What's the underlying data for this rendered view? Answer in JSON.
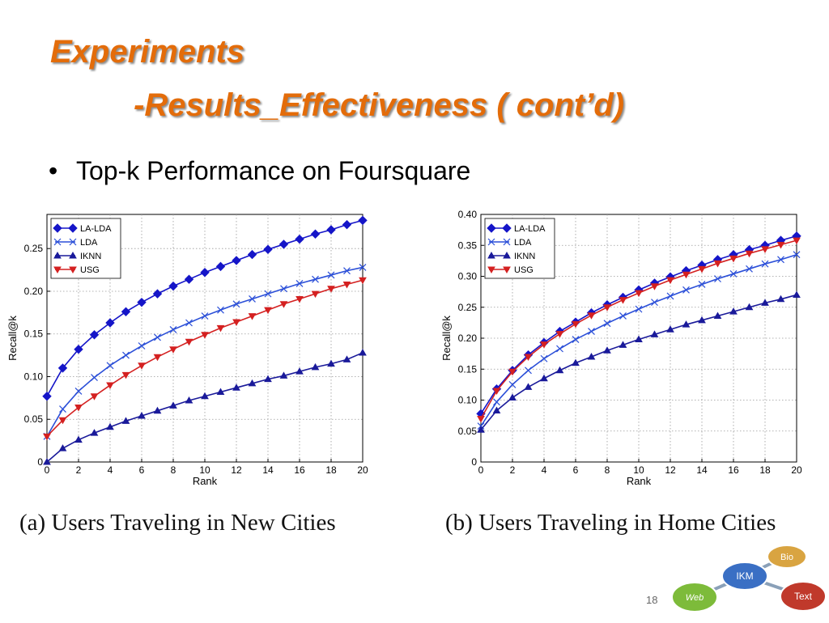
{
  "slide": {
    "title_line1": "Experiments",
    "title_line2": "-Results_Effectiveness ( cont’d)",
    "bullet": "Top-k Performance on Foursquare",
    "caption_a": "(a) Users Traveling in New Cities",
    "caption_b": "(b) Users Traveling in Home Cities",
    "page_number": "18",
    "logo": {
      "nodes": [
        "IKM",
        "Bio",
        "Web",
        "Text"
      ],
      "colors": {
        "IKM": "#3A6FC4",
        "Bio": "#D9A441",
        "Web": "#7DBB3A",
        "Text": "#C0392B"
      }
    },
    "colors": {
      "title": "#E36C0A"
    }
  },
  "chart_data": [
    {
      "type": "line",
      "xlabel": "Rank",
      "ylabel": "Recall@k",
      "xlim": [
        0,
        20
      ],
      "ylim": [
        0,
        0.29
      ],
      "xticks": [
        "0",
        "2",
        "4",
        "6",
        "8",
        "10",
        "12",
        "14",
        "16",
        "18",
        "20"
      ],
      "yticks": [
        "0",
        "0.05",
        "0.10",
        "0.15",
        "0.20",
        "0.25"
      ],
      "grid": true,
      "legend_position": "top-left",
      "x": [
        0,
        1,
        2,
        3,
        4,
        5,
        6,
        7,
        8,
        9,
        10,
        11,
        12,
        13,
        14,
        15,
        16,
        17,
        18,
        19,
        20
      ],
      "series": [
        {
          "name": "LA-LDA",
          "color": "#1515C8",
          "marker": "diamond",
          "values": [
            0.077,
            0.11,
            0.132,
            0.149,
            0.163,
            0.176,
            0.187,
            0.197,
            0.206,
            0.214,
            0.222,
            0.229,
            0.236,
            0.243,
            0.249,
            0.255,
            0.261,
            0.267,
            0.272,
            0.278,
            0.283
          ]
        },
        {
          "name": "LDA",
          "color": "#2B4FD8",
          "marker": "x",
          "values": [
            0.03,
            0.062,
            0.083,
            0.099,
            0.113,
            0.125,
            0.136,
            0.146,
            0.155,
            0.163,
            0.171,
            0.178,
            0.185,
            0.191,
            0.197,
            0.203,
            0.209,
            0.214,
            0.219,
            0.224,
            0.228
          ]
        },
        {
          "name": "IKNN",
          "color": "#1A1A9A",
          "marker": "triangle-up",
          "values": [
            0.0,
            0.016,
            0.026,
            0.034,
            0.041,
            0.048,
            0.054,
            0.06,
            0.066,
            0.072,
            0.077,
            0.082,
            0.087,
            0.092,
            0.097,
            0.101,
            0.106,
            0.111,
            0.115,
            0.12,
            0.128
          ]
        },
        {
          "name": "USG",
          "color": "#D42020",
          "marker": "triangle-down",
          "values": [
            0.03,
            0.049,
            0.064,
            0.077,
            0.09,
            0.102,
            0.113,
            0.123,
            0.132,
            0.141,
            0.149,
            0.157,
            0.164,
            0.171,
            0.178,
            0.185,
            0.191,
            0.197,
            0.203,
            0.208,
            0.213
          ]
        }
      ]
    },
    {
      "type": "line",
      "xlabel": "Rank",
      "ylabel": "Recall@k",
      "xlim": [
        0,
        20
      ],
      "ylim": [
        0,
        0.4
      ],
      "xticks": [
        "0",
        "2",
        "4",
        "6",
        "8",
        "10",
        "12",
        "14",
        "16",
        "18",
        "20"
      ],
      "yticks": [
        "0",
        "0.05",
        "0.10",
        "0.15",
        "0.20",
        "0.25",
        "0.30",
        "0.35",
        "0.40"
      ],
      "grid": true,
      "legend_position": "top-left",
      "x": [
        0,
        1,
        2,
        3,
        4,
        5,
        6,
        7,
        8,
        9,
        10,
        11,
        12,
        13,
        14,
        15,
        16,
        17,
        18,
        19,
        20
      ],
      "series": [
        {
          "name": "LA-LDA",
          "color": "#1515C8",
          "marker": "diamond",
          "values": [
            0.078,
            0.118,
            0.148,
            0.173,
            0.193,
            0.211,
            0.226,
            0.241,
            0.254,
            0.266,
            0.278,
            0.289,
            0.299,
            0.309,
            0.318,
            0.327,
            0.335,
            0.343,
            0.35,
            0.358,
            0.365
          ]
        },
        {
          "name": "LDA",
          "color": "#2B4FD8",
          "marker": "x",
          "values": [
            0.058,
            0.097,
            0.125,
            0.148,
            0.167,
            0.183,
            0.198,
            0.211,
            0.224,
            0.236,
            0.247,
            0.258,
            0.268,
            0.278,
            0.287,
            0.296,
            0.304,
            0.312,
            0.32,
            0.327,
            0.335
          ]
        },
        {
          "name": "IKNN",
          "color": "#1A1A9A",
          "marker": "triangle-up",
          "values": [
            0.052,
            0.083,
            0.104,
            0.121,
            0.135,
            0.148,
            0.16,
            0.17,
            0.18,
            0.189,
            0.198,
            0.206,
            0.214,
            0.222,
            0.229,
            0.236,
            0.243,
            0.25,
            0.257,
            0.263,
            0.27
          ]
        },
        {
          "name": "USG",
          "color": "#D42020",
          "marker": "triangle-down",
          "values": [
            0.07,
            0.115,
            0.146,
            0.17,
            0.19,
            0.207,
            0.223,
            0.237,
            0.25,
            0.262,
            0.273,
            0.284,
            0.294,
            0.303,
            0.312,
            0.321,
            0.329,
            0.337,
            0.344,
            0.351,
            0.358
          ]
        }
      ]
    }
  ]
}
